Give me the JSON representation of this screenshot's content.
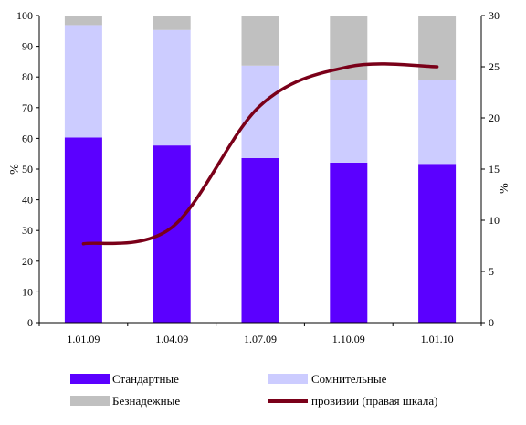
{
  "chart_data": {
    "type": "bar",
    "stacked": true,
    "categories": [
      "1.01.09",
      "1.04.09",
      "1.07.09",
      "1.10.09",
      "1.01.10"
    ],
    "series": [
      {
        "name": "Стандартные",
        "color": "#5B00FF",
        "values": [
          60.3,
          57.7,
          53.6,
          52.1,
          51.7
        ]
      },
      {
        "name": "Сомнительные",
        "color": "#CCCCFF",
        "values": [
          36.6,
          37.6,
          30.1,
          26.9,
          27.3
        ]
      },
      {
        "name": "Безнадежные",
        "color": "#C0C0C0",
        "values": [
          3.1,
          4.7,
          16.3,
          21.0,
          21.0
        ]
      }
    ],
    "line_series": {
      "name": "провизии (правая шкала)",
      "color": "#7A0019",
      "axis": "right",
      "values": [
        7.7,
        9.3,
        21.2,
        25.0,
        25.0
      ]
    },
    "ylabel": "%",
    "ylabel_right": "%",
    "ylim": [
      0,
      100
    ],
    "ylim_right": [
      0,
      30
    ],
    "yticks": [
      0,
      10,
      20,
      30,
      40,
      50,
      60,
      70,
      80,
      90,
      100
    ],
    "yticks_right": [
      0,
      5,
      10,
      15,
      20,
      25,
      30
    ],
    "grid": false,
    "legend_placement": "bottom"
  }
}
